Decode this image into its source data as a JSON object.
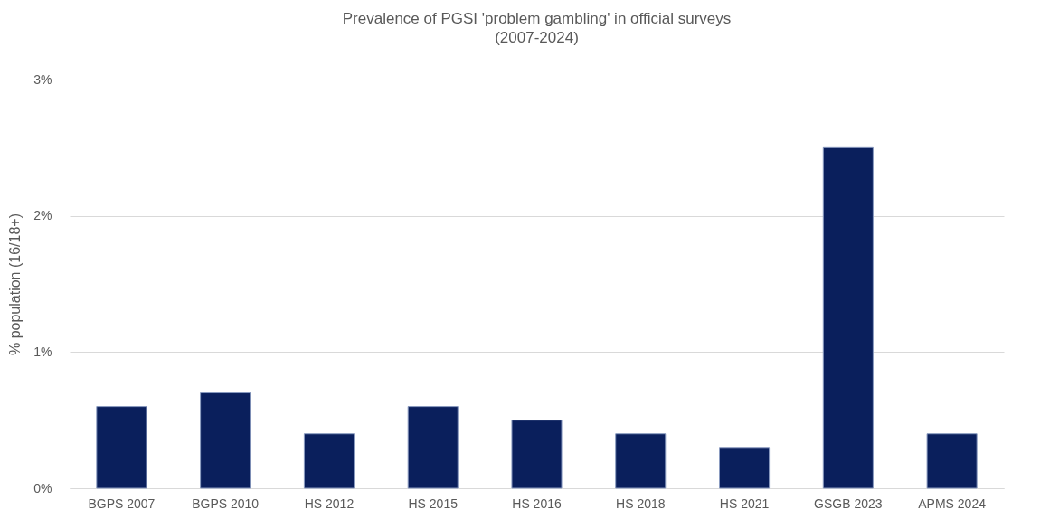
{
  "chart_data": {
    "type": "bar",
    "title": "Prevalence of PGSI 'problem gambling' in official surveys",
    "subtitle": "(2007-2024)",
    "ylabel": "% population (16/18+)",
    "categories": [
      "BGPS 2007",
      "BGPS 2010",
      "HS 2012",
      "HS 2015",
      "HS 2016",
      "HS 2018",
      "HS 2021",
      "GSGB 2023",
      "APMS 2024"
    ],
    "values": [
      0.6,
      0.7,
      0.4,
      0.6,
      0.5,
      0.4,
      0.3,
      2.5,
      0.4
    ],
    "color": "#0a1f5c",
    "ylim": [
      0,
      3
    ],
    "yticks": [
      {
        "value": 0,
        "label": "0%"
      },
      {
        "value": 1,
        "label": "1%"
      },
      {
        "value": 2,
        "label": "2%"
      },
      {
        "value": 3,
        "label": "3%"
      }
    ],
    "grid": "y"
  }
}
